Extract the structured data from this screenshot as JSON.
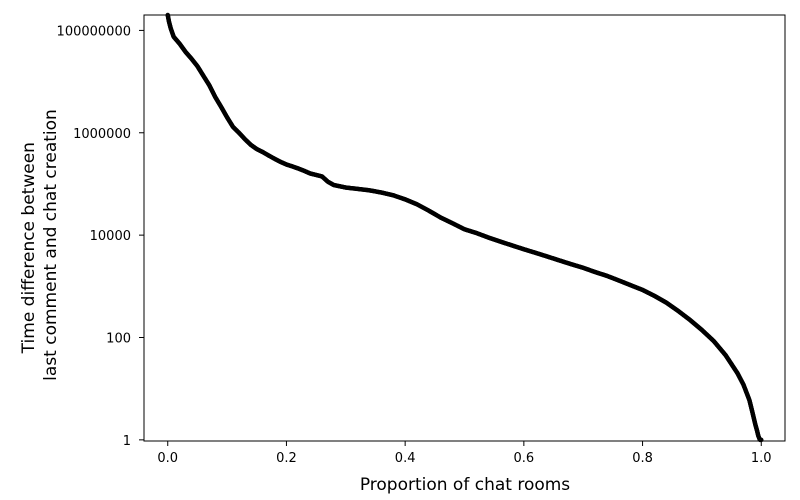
{
  "chart_data": {
    "type": "scatter",
    "title": "",
    "xlabel": "Proportion of chat rooms",
    "ylabel_lines": [
      "Time difference between",
      "last comment and chat creation"
    ],
    "y_scale": "log10",
    "xlim": [
      -0.04,
      1.04
    ],
    "ylim": [
      0.95,
      200000000
    ],
    "x_ticks": [
      0.0,
      0.2,
      0.4,
      0.6,
      0.8,
      1.0
    ],
    "x_tick_labels": [
      "0.0",
      "0.2",
      "0.4",
      "0.6",
      "0.8",
      "1.0"
    ],
    "y_ticks": [
      1,
      100,
      10000,
      1000000,
      100000000
    ],
    "y_tick_labels": [
      "1",
      "100",
      "10000",
      "1000000",
      "100000000"
    ],
    "grid": false,
    "legend": "none",
    "marker": "open-circle",
    "marker_color": "#000000",
    "series": [
      {
        "x": [
          0.0,
          0.002,
          0.005,
          0.01,
          0.02,
          0.03,
          0.04,
          0.05,
          0.06,
          0.07,
          0.08,
          0.09,
          0.1,
          0.11,
          0.12,
          0.13,
          0.14,
          0.15,
          0.16,
          0.17,
          0.18,
          0.19,
          0.2,
          0.21,
          0.22,
          0.23,
          0.24,
          0.25,
          0.26,
          0.27,
          0.28,
          0.29,
          0.3,
          0.32,
          0.34,
          0.36,
          0.38,
          0.4,
          0.42,
          0.44,
          0.46,
          0.48,
          0.5,
          0.52,
          0.54,
          0.56,
          0.58,
          0.6,
          0.62,
          0.64,
          0.66,
          0.68,
          0.7,
          0.72,
          0.74,
          0.76,
          0.78,
          0.8,
          0.82,
          0.84,
          0.86,
          0.88,
          0.9,
          0.92,
          0.94,
          0.95,
          0.96,
          0.97,
          0.98,
          0.985,
          0.99,
          0.993,
          0.995,
          0.997,
          0.998,
          0.999,
          1.0
        ],
        "y": [
          200000000,
          150000000,
          110000000,
          75000000,
          55000000,
          38000000,
          28000000,
          20000000,
          13000000,
          8500000,
          5000000,
          3200000,
          2000000,
          1300000,
          1000000,
          750000,
          580000,
          480000,
          420000,
          360000,
          310000,
          270000,
          240000,
          220000,
          200000,
          180000,
          160000,
          150000,
          140000,
          110000,
          95000,
          90000,
          85000,
          80000,
          75000,
          68000,
          60000,
          50000,
          40000,
          30000,
          22000,
          17000,
          13000,
          11000,
          9000,
          7500,
          6300,
          5300,
          4500,
          3800,
          3200,
          2700,
          2300,
          1900,
          1600,
          1300,
          1050,
          850,
          650,
          480,
          330,
          220,
          140,
          85,
          45,
          30,
          20,
          12,
          6,
          3.5,
          2,
          1.5,
          1.2,
          1.05,
          1.0,
          1.0,
          1.0
        ]
      }
    ]
  }
}
